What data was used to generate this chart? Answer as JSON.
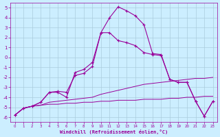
{
  "xlabel": "Windchill (Refroidissement éolien,°C)",
  "background_color": "#cceeff",
  "grid_color": "#aaccdd",
  "line_color": "#990099",
  "ylim": [
    -6.5,
    5.5
  ],
  "xlim": [
    -0.5,
    23.5
  ],
  "series1_y": [
    -5.8,
    -5.1,
    -4.9,
    -4.8,
    -4.7,
    -4.7,
    -4.6,
    -4.6,
    -4.5,
    -4.5,
    -4.4,
    -4.4,
    -4.3,
    -4.3,
    -4.3,
    -4.2,
    -4.2,
    -4.2,
    -4.1,
    -4.1,
    -4.0,
    -4.0,
    -3.9,
    -3.9
  ],
  "series2_y": [
    -5.8,
    -5.1,
    -4.9,
    -4.8,
    -4.5,
    -4.4,
    -4.3,
    -4.2,
    -4.1,
    -4.0,
    -3.7,
    -3.5,
    -3.3,
    -3.1,
    -2.9,
    -2.7,
    -2.6,
    -2.5,
    -2.4,
    -2.3,
    -2.2,
    -2.1,
    -2.1,
    -2.0
  ],
  "series3_y": [
    -5.8,
    -5.1,
    -4.9,
    -4.5,
    -3.5,
    -3.4,
    -3.5,
    -1.8,
    -1.6,
    -0.9,
    2.5,
    2.5,
    1.7,
    1.5,
    1.2,
    0.5,
    0.3,
    0.2,
    -2.2,
    -2.5,
    -2.5,
    -4.4,
    -5.9,
    -4.4
  ],
  "series4_y": [
    -5.8,
    -5.1,
    -4.9,
    -4.5,
    -3.5,
    -3.5,
    -4.0,
    -1.5,
    -1.2,
    -0.5,
    2.5,
    4.0,
    5.1,
    4.7,
    4.2,
    3.3,
    0.4,
    0.3,
    -2.2,
    -2.5,
    -2.5,
    -4.4,
    -5.9,
    -4.4
  ]
}
